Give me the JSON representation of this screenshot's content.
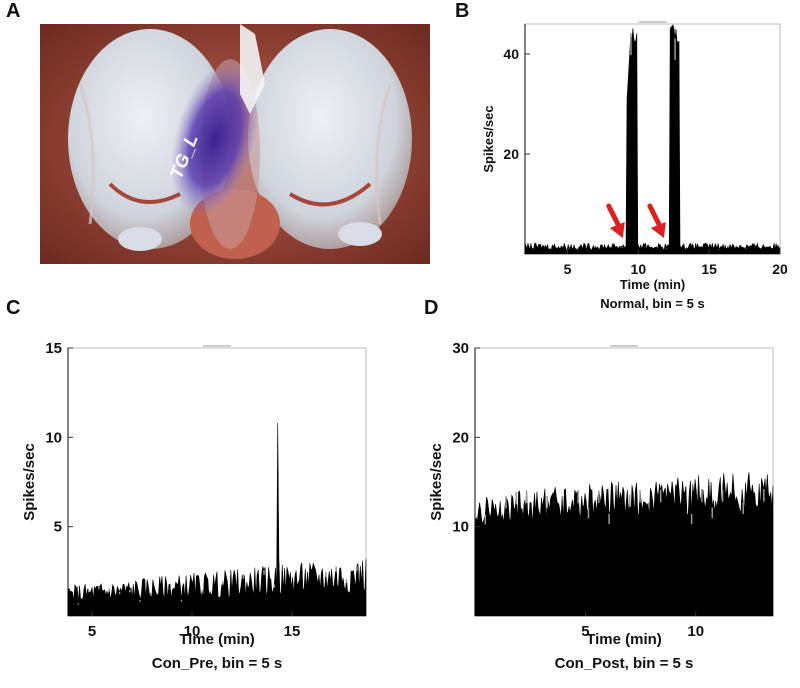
{
  "panels": {
    "A": {
      "letter": "A",
      "photo_label": "TG_L"
    },
    "B": {
      "letter": "B"
    },
    "C": {
      "letter": "C"
    },
    "D": {
      "letter": "D"
    }
  },
  "chart_data": [
    {
      "id": "B",
      "type": "area",
      "xlabel": "Time (min)",
      "ylabel": "Spikes/sec",
      "caption": "Normal, bin = 5 s",
      "xlim": [
        2,
        20
      ],
      "ylim": [
        0,
        46
      ],
      "xticks": [
        5,
        10,
        15,
        20
      ],
      "yticks": [
        20,
        40
      ],
      "baseline": 1.5,
      "bursts": [
        {
          "x_start": 9.2,
          "x_end": 9.9,
          "peak": 46,
          "shoulder": 31
        },
        {
          "x_start": 12.2,
          "x_end": 12.9,
          "peak": 46,
          "shoulder": 45
        }
      ],
      "annotations": [
        {
          "type": "arrow",
          "color": "#e02020",
          "target_x": 8.9,
          "target_y": 2
        },
        {
          "type": "arrow",
          "color": "#e02020",
          "target_x": 11.8,
          "target_y": 2
        }
      ]
    },
    {
      "id": "C",
      "type": "area",
      "xlabel": "Time (min)",
      "ylabel": "Spikes/sec",
      "caption": "Con_Pre, bin = 5 s",
      "xlim": [
        3.8,
        18.7
      ],
      "ylim": [
        0,
        15
      ],
      "xticks": [
        5,
        10,
        15
      ],
      "yticks": [
        5,
        10,
        15
      ],
      "baseline_start": 1.2,
      "baseline_end": 2.3,
      "spike": {
        "x": 14.3,
        "value": 10.8
      }
    },
    {
      "id": "D",
      "type": "area",
      "xlabel": "Time (min)",
      "ylabel": "Spikes/sec",
      "caption": "Con_Post, bin = 5 s",
      "xlim": [
        0,
        13.5
      ],
      "ylim": [
        0,
        30
      ],
      "xticks": [
        5,
        10
      ],
      "yticks": [
        10,
        20,
        30
      ],
      "baseline_start": 12,
      "baseline_end": 14.5
    }
  ]
}
